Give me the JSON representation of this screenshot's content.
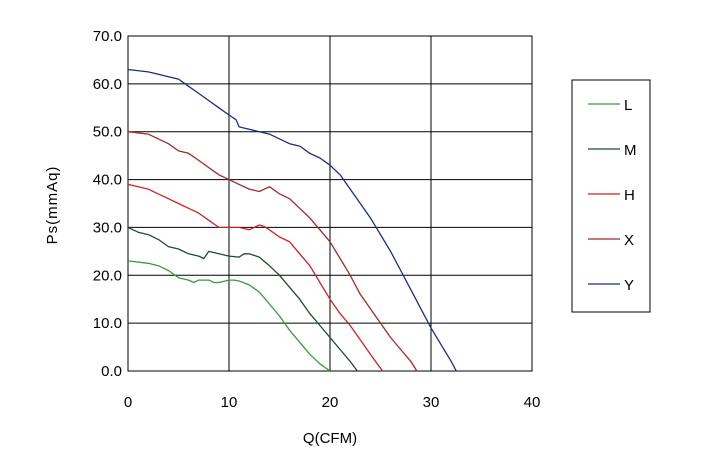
{
  "chart_data": {
    "type": "line",
    "title": "",
    "xlabel": "Q(CFM)",
    "ylabel": "Ps(mmAq)",
    "xlim": [
      0,
      40
    ],
    "ylim": [
      0,
      70
    ],
    "x_ticks": [
      {
        "value": 0,
        "label": "0"
      },
      {
        "value": 10,
        "label": "10"
      },
      {
        "value": 20,
        "label": "20"
      },
      {
        "value": 30,
        "label": "30"
      },
      {
        "value": 40,
        "label": "40"
      }
    ],
    "y_ticks": [
      {
        "value": 0,
        "label": "0.0"
      },
      {
        "value": 10,
        "label": "10.0"
      },
      {
        "value": 20,
        "label": "20.0"
      },
      {
        "value": 30,
        "label": "30.0"
      },
      {
        "value": 40,
        "label": "40.0"
      },
      {
        "value": 50,
        "label": "50.0"
      },
      {
        "value": 60,
        "label": "60.0"
      },
      {
        "value": 70,
        "label": "70.0"
      }
    ],
    "grid": true,
    "legend_position": "right",
    "series": [
      {
        "name": "L",
        "color": "#3a9a3a",
        "points": [
          [
            0,
            23
          ],
          [
            2,
            22.5
          ],
          [
            3,
            22
          ],
          [
            4,
            21
          ],
          [
            5,
            19.5
          ],
          [
            6,
            19
          ],
          [
            6.5,
            18.5
          ],
          [
            7,
            19
          ],
          [
            8,
            19
          ],
          [
            8.5,
            18.5
          ],
          [
            9,
            18.5
          ],
          [
            10,
            19
          ],
          [
            10.5,
            19
          ],
          [
            11,
            18.8
          ],
          [
            12,
            18
          ],
          [
            13,
            16.5
          ],
          [
            14,
            14
          ],
          [
            15,
            11.5
          ],
          [
            16,
            8.5
          ],
          [
            17,
            6
          ],
          [
            18,
            3.5
          ],
          [
            19,
            1.5
          ],
          [
            20,
            0
          ]
        ]
      },
      {
        "name": "M",
        "color": "#1f4a2e",
        "points": [
          [
            0,
            30
          ],
          [
            1,
            29
          ],
          [
            2,
            28.5
          ],
          [
            3,
            27.5
          ],
          [
            4,
            26
          ],
          [
            5,
            25.5
          ],
          [
            6,
            24.5
          ],
          [
            7,
            24
          ],
          [
            7.5,
            23.5
          ],
          [
            8,
            25
          ],
          [
            9,
            24.5
          ],
          [
            10,
            24
          ],
          [
            11,
            23.8
          ],
          [
            11.5,
            24.5
          ],
          [
            12,
            24.5
          ],
          [
            13,
            23.8
          ],
          [
            14,
            22
          ],
          [
            15,
            20
          ],
          [
            16,
            17.5
          ],
          [
            17,
            15
          ],
          [
            18,
            12
          ],
          [
            19,
            9.5
          ],
          [
            20,
            7
          ],
          [
            21,
            4.5
          ],
          [
            22,
            2
          ],
          [
            22.7,
            0
          ]
        ]
      },
      {
        "name": "H",
        "color": "#cc2222",
        "points": [
          [
            0,
            39
          ],
          [
            2,
            38
          ],
          [
            3,
            37
          ],
          [
            4,
            36
          ],
          [
            5,
            35
          ],
          [
            6,
            34
          ],
          [
            7,
            33
          ],
          [
            8,
            31.5
          ],
          [
            9,
            30
          ],
          [
            10,
            30
          ],
          [
            11,
            30
          ],
          [
            12,
            29.5
          ],
          [
            13,
            30.5
          ],
          [
            13.5,
            30.2
          ],
          [
            14,
            29.5
          ],
          [
            15,
            28
          ],
          [
            16,
            27
          ],
          [
            17,
            24.5
          ],
          [
            18,
            22
          ],
          [
            19,
            18.5
          ],
          [
            20,
            15
          ],
          [
            21,
            12
          ],
          [
            22,
            9.5
          ],
          [
            23,
            6.5
          ],
          [
            24,
            3.5
          ],
          [
            25.2,
            0
          ]
        ]
      },
      {
        "name": "X",
        "color": "#a02a28",
        "points": [
          [
            0,
            50
          ],
          [
            2,
            49.5
          ],
          [
            3,
            48.5
          ],
          [
            4,
            47.5
          ],
          [
            5,
            46
          ],
          [
            6,
            45.5
          ],
          [
            7,
            44
          ],
          [
            8,
            42.5
          ],
          [
            9,
            41
          ],
          [
            10,
            40
          ],
          [
            11,
            39
          ],
          [
            12,
            38
          ],
          [
            13,
            37.5
          ],
          [
            14,
            38.5
          ],
          [
            15,
            37
          ],
          [
            16,
            36
          ],
          [
            17,
            34
          ],
          [
            18,
            32
          ],
          [
            19,
            29.5
          ],
          [
            20,
            27
          ],
          [
            21,
            23.5
          ],
          [
            22,
            20
          ],
          [
            23,
            16
          ],
          [
            24,
            13
          ],
          [
            25,
            10
          ],
          [
            26,
            7
          ],
          [
            27,
            4.5
          ],
          [
            28,
            2
          ],
          [
            28.6,
            0
          ]
        ]
      },
      {
        "name": "Y",
        "color": "#1a2c8a",
        "points": [
          [
            0,
            63
          ],
          [
            2,
            62.5
          ],
          [
            3,
            62
          ],
          [
            4,
            61.5
          ],
          [
            5,
            61
          ],
          [
            6,
            59.5
          ],
          [
            7,
            58
          ],
          [
            8,
            56.5
          ],
          [
            9,
            55
          ],
          [
            10,
            53.5
          ],
          [
            10.7,
            52.5
          ],
          [
            11,
            51
          ],
          [
            12,
            50.5
          ],
          [
            13,
            50
          ],
          [
            14,
            49.5
          ],
          [
            15,
            48.5
          ],
          [
            16,
            47.5
          ],
          [
            17,
            47
          ],
          [
            18,
            45.5
          ],
          [
            19,
            44.5
          ],
          [
            20,
            43
          ],
          [
            21,
            41
          ],
          [
            22,
            38
          ],
          [
            23,
            35
          ],
          [
            24,
            32
          ],
          [
            25,
            28.5
          ],
          [
            26,
            25
          ],
          [
            27,
            21
          ],
          [
            28,
            17
          ],
          [
            29,
            13
          ],
          [
            30,
            9
          ],
          [
            31,
            5.5
          ],
          [
            32,
            2
          ],
          [
            32.5,
            0
          ]
        ]
      }
    ]
  }
}
